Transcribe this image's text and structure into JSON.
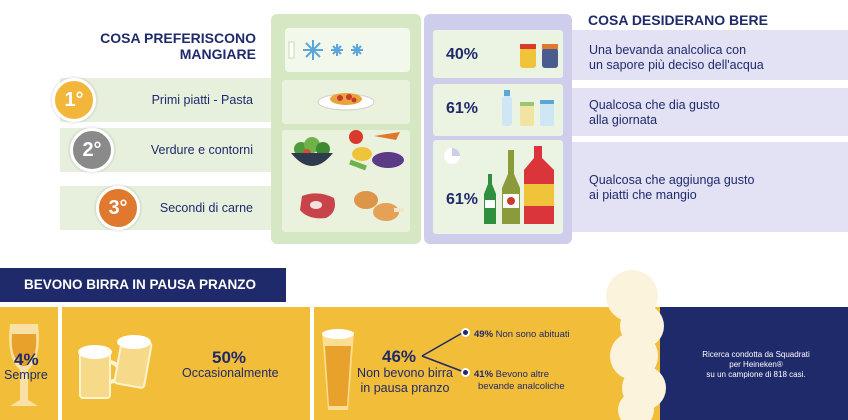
{
  "headers": {
    "eat_title": "COSA PREFERISCONO MANGIARE",
    "drink_title": "COSA DESIDERANO BERE"
  },
  "food_ranking": [
    {
      "rank": "1°",
      "label": "Primi piatti - Pasta",
      "color": "#f2b73a"
    },
    {
      "rank": "2°",
      "label": "Verdure e contorni",
      "color": "#8a8a8a"
    },
    {
      "rank": "3°",
      "label": "Secondi di carne",
      "color": "#e0782d"
    }
  ],
  "drink_wishes": [
    {
      "percent": "40%",
      "text_line1": "Una bevanda analcolica con",
      "text_line2": "un sapore più deciso dell'acqua"
    },
    {
      "percent": "61%",
      "text_line1": "Qualcosa che dia gusto",
      "text_line2": "alla giornata"
    },
    {
      "percent": "61%",
      "text_line1": "Qualcosa che aggiunga gusto",
      "text_line2": "ai piatti che mangio"
    }
  ],
  "beer": {
    "banner": "BEVONO BIRRA IN PAUSA PRANZO",
    "always": {
      "value": "4%",
      "label": "Sempre"
    },
    "occasional": {
      "value": "50%",
      "label": "Occasionalmente"
    },
    "never": {
      "value": "46%",
      "label_line1": "Non bevono birra",
      "label_line2": "in pausa pranzo"
    },
    "breakdown": [
      {
        "value": "49%",
        "label_line1": "Non sono abituati",
        "label_line2": ""
      },
      {
        "value": "41%",
        "label_line1": "Bevono altre",
        "label_line2": "bevande analcoliche"
      }
    ]
  },
  "credit": {
    "line1": "Ricerca condotta da Squadrati",
    "line2": "per Heineken®",
    "line3": "su un campione di 818 casi."
  },
  "colors": {
    "navy": "#1f2a6b",
    "fridge_green": "#d6e7c3",
    "fridge_lilac": "#cfcdec",
    "beer_yellow": "#f2bd38"
  }
}
